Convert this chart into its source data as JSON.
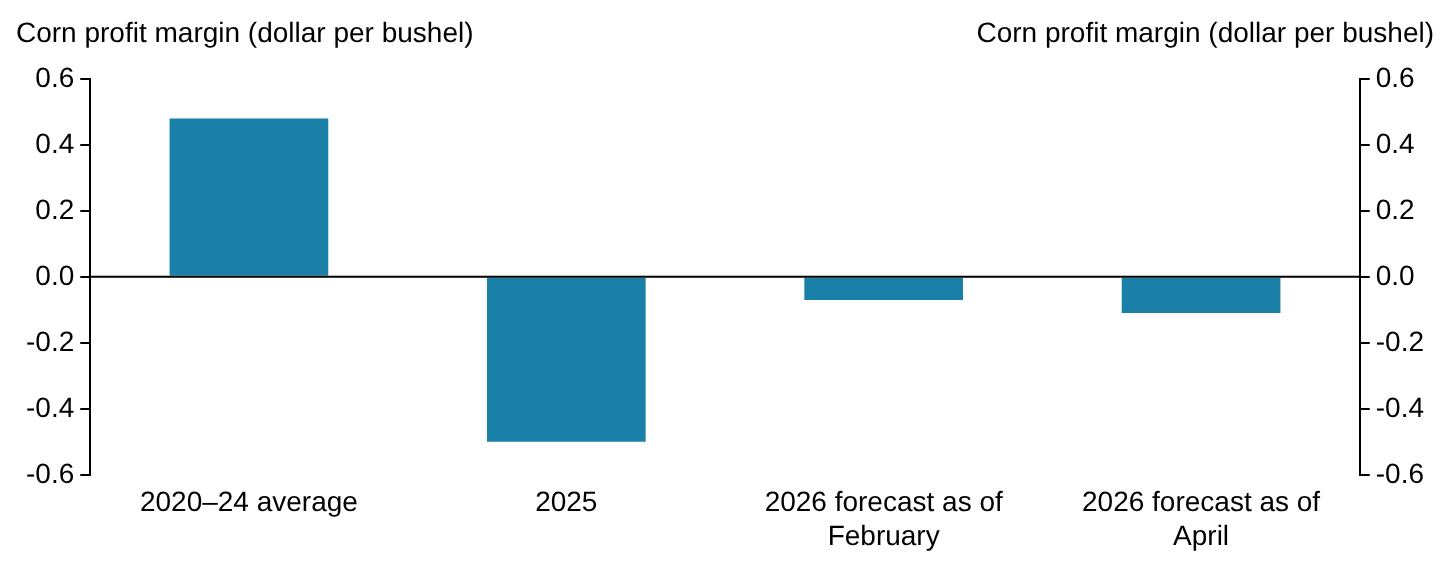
{
  "chart_data": {
    "type": "bar",
    "ylabel": "Corn profit margin (dollar per bushel)",
    "y2label": "Corn profit margin (dollar per bushel)",
    "categories": [
      "2020–24 average",
      "2025",
      "2026 forecast as of February",
      "2026 forecast as of April"
    ],
    "values": [
      0.48,
      -0.5,
      -0.07,
      -0.11
    ],
    "color": "#1a80a8",
    "ylim": [
      -0.6,
      0.6
    ],
    "yticks": [
      {
        "value": -0.6,
        "label": "-0.6"
      },
      {
        "value": -0.4,
        "label": "-0.4"
      },
      {
        "value": -0.2,
        "label": "-0.2"
      },
      {
        "value": 0,
        "label": "0.0"
      },
      {
        "value": 0.2,
        "label": "0.2"
      },
      {
        "value": 0.4,
        "label": "0.4"
      },
      {
        "value": 0.6,
        "label": "0.6"
      }
    ],
    "y2lim": [
      -0.6,
      0.6
    ],
    "y2ticks": [
      {
        "value": -0.6,
        "label": "-0.6"
      },
      {
        "value": -0.4,
        "label": "-0.4"
      },
      {
        "value": -0.2,
        "label": "-0.2"
      },
      {
        "value": 0,
        "label": "0.0"
      },
      {
        "value": 0.2,
        "label": "0.2"
      },
      {
        "value": 0.4,
        "label": "0.4"
      },
      {
        "value": 0.6,
        "label": "0.6"
      }
    ],
    "ref_lines": [
      {
        "axis": "y",
        "value": 0,
        "color": "#000000"
      }
    ],
    "grid": false,
    "legend": false
  }
}
